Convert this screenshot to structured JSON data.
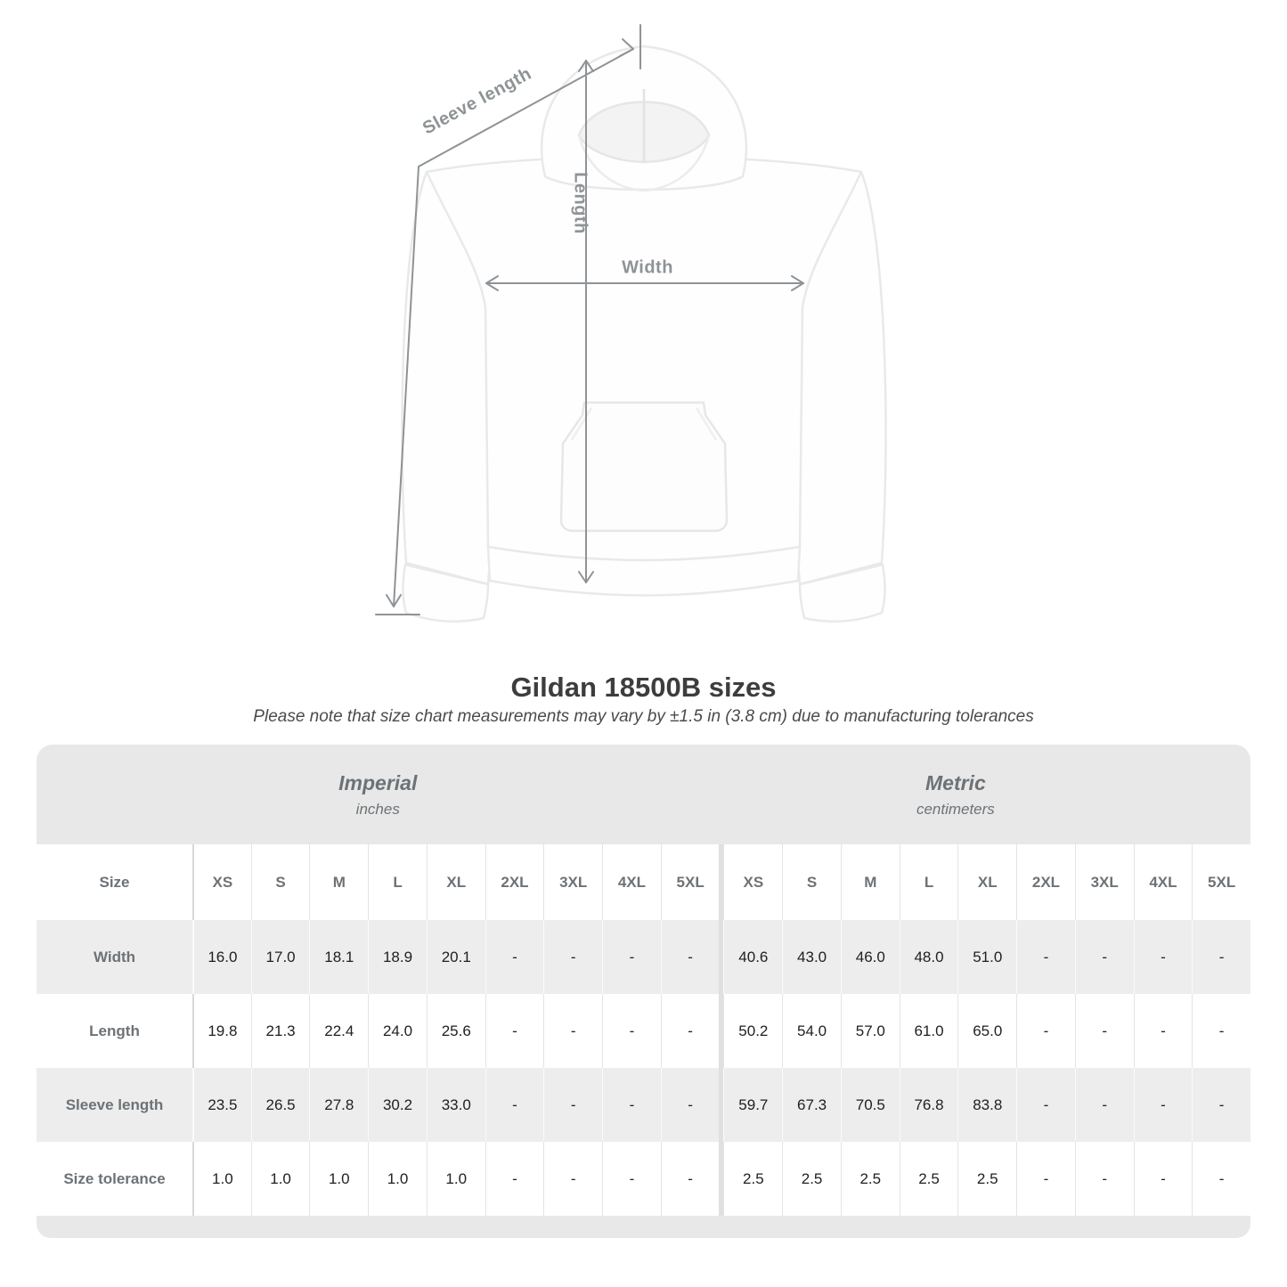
{
  "figure": {
    "labels": {
      "sleeve_length": "Sleeve length",
      "length": "Length",
      "width": "Width"
    },
    "arrow_color": "#8e9396"
  },
  "chart_data": {
    "type": "table",
    "title": "Gildan 18500B sizes",
    "subtitle": "Please note that size chart measurements may vary by ±1.5 in (3.8 cm) due to manufacturing tolerances",
    "size_column_label": "Size",
    "column_groups": [
      {
        "name": "Imperial",
        "unit": "inches"
      },
      {
        "name": "Metric",
        "unit": "centimeters"
      }
    ],
    "sizes": [
      "XS",
      "S",
      "M",
      "L",
      "XL",
      "2XL",
      "3XL",
      "4XL",
      "5XL"
    ],
    "rows": [
      {
        "label": "Width",
        "imperial": [
          "16.0",
          "17.0",
          "18.1",
          "18.9",
          "20.1",
          "-",
          "-",
          "-",
          "-"
        ],
        "metric": [
          "40.6",
          "43.0",
          "46.0",
          "48.0",
          "51.0",
          "-",
          "-",
          "-",
          "-"
        ]
      },
      {
        "label": "Length",
        "imperial": [
          "19.8",
          "21.3",
          "22.4",
          "24.0",
          "25.6",
          "-",
          "-",
          "-",
          "-"
        ],
        "metric": [
          "50.2",
          "54.0",
          "57.0",
          "61.0",
          "65.0",
          "-",
          "-",
          "-",
          "-"
        ]
      },
      {
        "label": "Sleeve length",
        "imperial": [
          "23.5",
          "26.5",
          "27.8",
          "30.2",
          "33.0",
          "-",
          "-",
          "-",
          "-"
        ],
        "metric": [
          "59.7",
          "67.3",
          "70.5",
          "76.8",
          "83.8",
          "-",
          "-",
          "-",
          "-"
        ]
      },
      {
        "label": "Size tolerance",
        "imperial": [
          "1.0",
          "1.0",
          "1.0",
          "1.0",
          "1.0",
          "-",
          "-",
          "-",
          "-"
        ],
        "metric": [
          "2.5",
          "2.5",
          "2.5",
          "2.5",
          "2.5",
          "-",
          "-",
          "-",
          "-"
        ]
      }
    ]
  },
  "colors": {
    "accent_gray": "#8e9396",
    "header_bg": "#e8e8e8",
    "row_alt_bg": "#ededed",
    "header_text": "#6d7276",
    "value_text": "#212121"
  }
}
